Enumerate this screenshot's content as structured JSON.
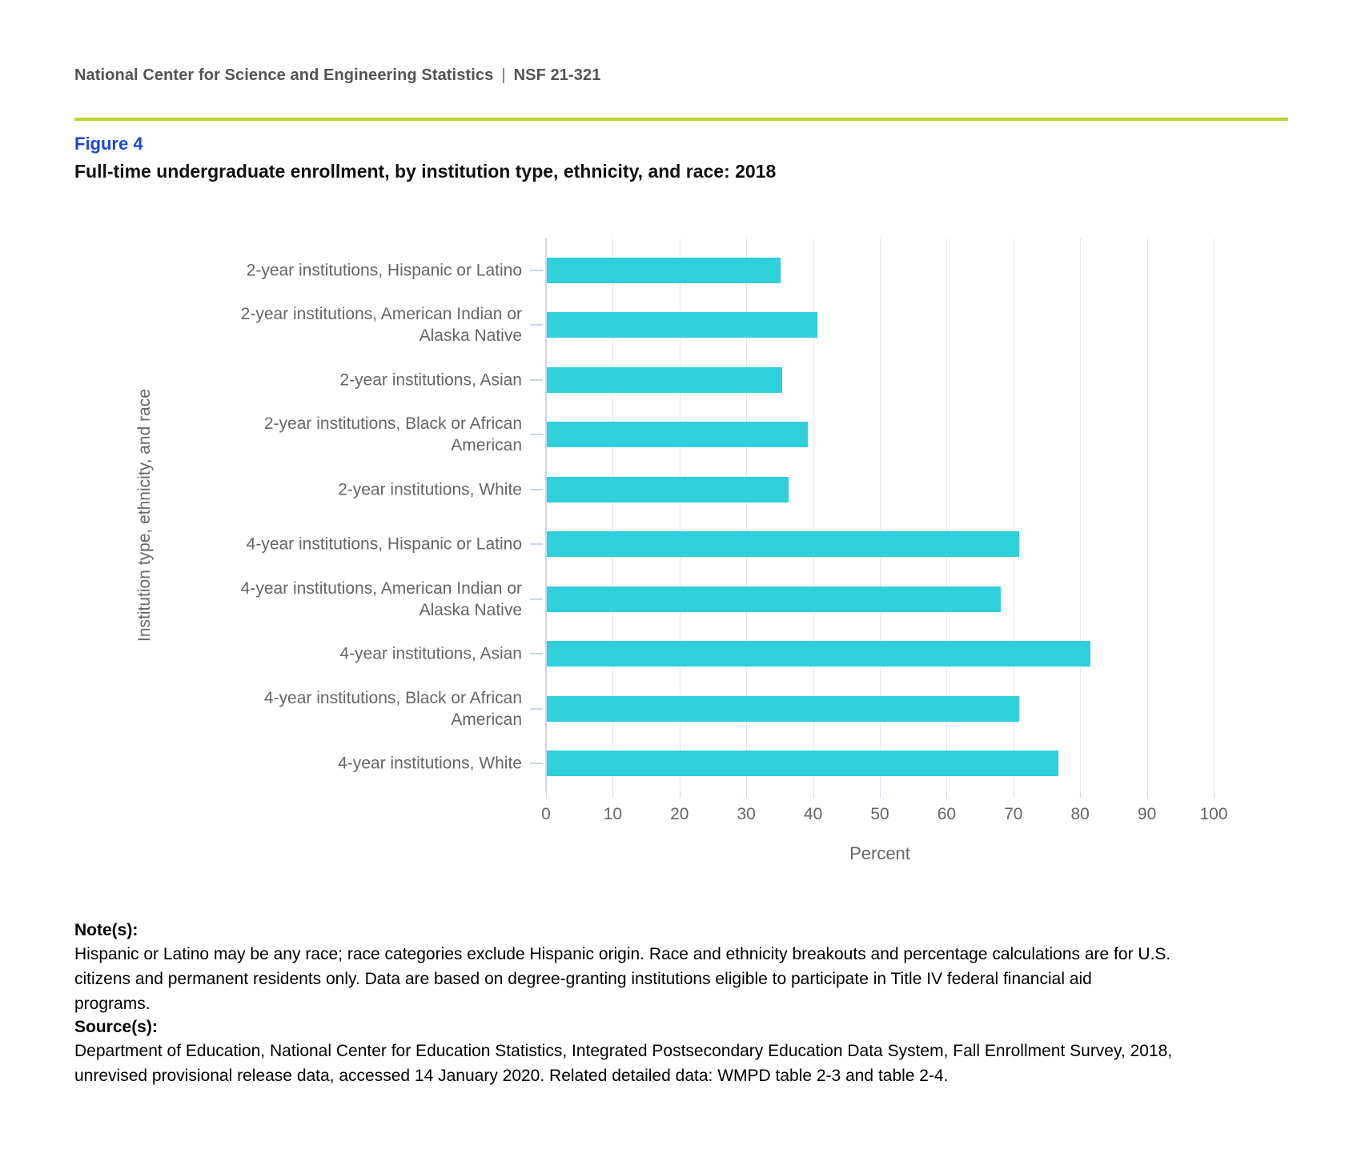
{
  "header": {
    "publisher": "National Center for Science and Engineering Statistics",
    "separator": "|",
    "report_number": "NSF 21-321"
  },
  "figure": {
    "label": "Figure 4",
    "title": "Full-time undergraduate enrollment, by institution type, ethnicity, and race: 2018"
  },
  "chart_data": {
    "type": "bar",
    "orientation": "horizontal",
    "categories": [
      "2-year institutions, Hispanic or Latino",
      "2-year institutions, American Indian or\nAlaska Native",
      "2-year institutions, Asian",
      "2-year institutions, Black or African\nAmerican",
      "2-year institutions, White",
      "4-year institutions, Hispanic or Latino",
      "4-year institutions, American Indian or\nAlaska Native",
      "4-year institutions, Asian",
      "4-year institutions, Black or African\nAmerican",
      "4-year institutions, White"
    ],
    "values": [
      35.0,
      40.5,
      35.2,
      39.1,
      36.2,
      70.8,
      68.0,
      81.4,
      70.8,
      76.6
    ],
    "title": "Full-time undergraduate enrollment, by institution type, ethnicity, and race: 2018",
    "xlabel": "Percent",
    "ylabel": "Institution type, ethnicity, and race",
    "xlim": [
      0,
      100
    ],
    "xticks": [
      0,
      10,
      20,
      30,
      40,
      50,
      60,
      70,
      80,
      90,
      100
    ],
    "grid": true,
    "legend": "none",
    "bar_color": "#2fcfdb"
  },
  "notes": {
    "heading": "Note(s):",
    "text": "Hispanic or Latino may be any race; race categories exclude Hispanic origin. Race and ethnicity breakouts and percentage calculations are for U.S.\ncitizens and permanent residents only. Data are based on degree-granting institutions eligible to participate in Title IV federal financial aid\nprograms."
  },
  "sources": {
    "heading": "Source(s):",
    "text": "Department of Education, National Center for Education Statistics, Integrated Postsecondary Education Data System, Fall Enrollment Survey, 2018,\nunrevised provisional release data, accessed 14 January 2020. Related detailed data: WMPD table 2-3 and table 2-4."
  },
  "colors": {
    "bar": "#2fcfdb",
    "gridline": "#e6e6e6",
    "axis": "#ccd6eb",
    "chart_text": "#666666",
    "divider_green": "#bcd631",
    "figure_label_blue": "#1c49d6",
    "header_gray": "#545457"
  }
}
